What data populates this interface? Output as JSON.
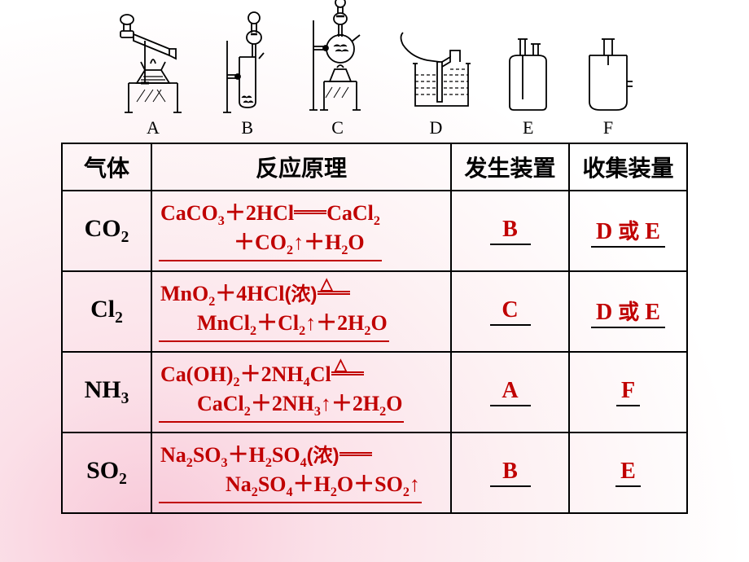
{
  "apparatus_labels": [
    "A",
    "B",
    "C",
    "D",
    "E",
    "F"
  ],
  "headers": {
    "gas": "气体",
    "principle": "反应原理",
    "generator": "发生装置",
    "collector": "收集装量"
  },
  "rows": [
    {
      "gas_html": "CO<sub>2</sub>",
      "eq_line1": "CaCO<sub>3</sub>＋2HCl<span class='dbl-line'></span>CaCl<sub>2</sub>",
      "eq_line2": "＋CO<sub>2</sub><span class='arrow'>↑</span>＋H<sub>2</sub>O",
      "generator": "B",
      "collector": "D <span class='cn'>或</span> E",
      "indent_class": "indent3"
    },
    {
      "gas_html": "Cl<sub>2</sub>",
      "eq_line1": "MnO<sub>2</sub>＋4HCl<span class='cn-dense'>(浓)</span><span class='dbl-line'></span><span class='triangle'>△</span>",
      "eq_line2": "MnCl<sub>2</sub>＋Cl<sub>2</sub><span class='arrow'>↑</span>＋2H<sub>2</sub>O",
      "generator": "C",
      "collector": "D <span class='cn'>或</span> E",
      "indent_class": "indent2"
    },
    {
      "gas_html": "NH<sub>3</sub>",
      "eq_line1": "Ca(OH)<sub>2</sub>＋2NH<sub>4</sub>Cl<span class='dbl-line'></span><span class='triangle'>△</span>",
      "eq_line2": "CaCl<sub>2</sub>＋2NH<sub>3</sub><span class='arrow'>↑</span>＋2H<sub>2</sub>O",
      "generator": "A",
      "collector": "F",
      "indent_class": "indent2"
    },
    {
      "gas_html": "SO<sub>2</sub>",
      "eq_line1": "Na<sub>2</sub>SO<sub>3</sub>＋H<sub>2</sub>SO<sub>4</sub><span class='cn-dense'>(浓)</span><span class='dbl-line'></span>",
      "eq_line2": "Na<sub>2</sub>SO<sub>4</sub>＋H<sub>2</sub>O＋SO<sub>2</sub><span class='arrow'>↑</span>",
      "generator": "B",
      "collector": "E",
      "indent_class": "indent"
    }
  ],
  "colors": {
    "answer_color": "#c00000",
    "border_color": "#000000"
  }
}
